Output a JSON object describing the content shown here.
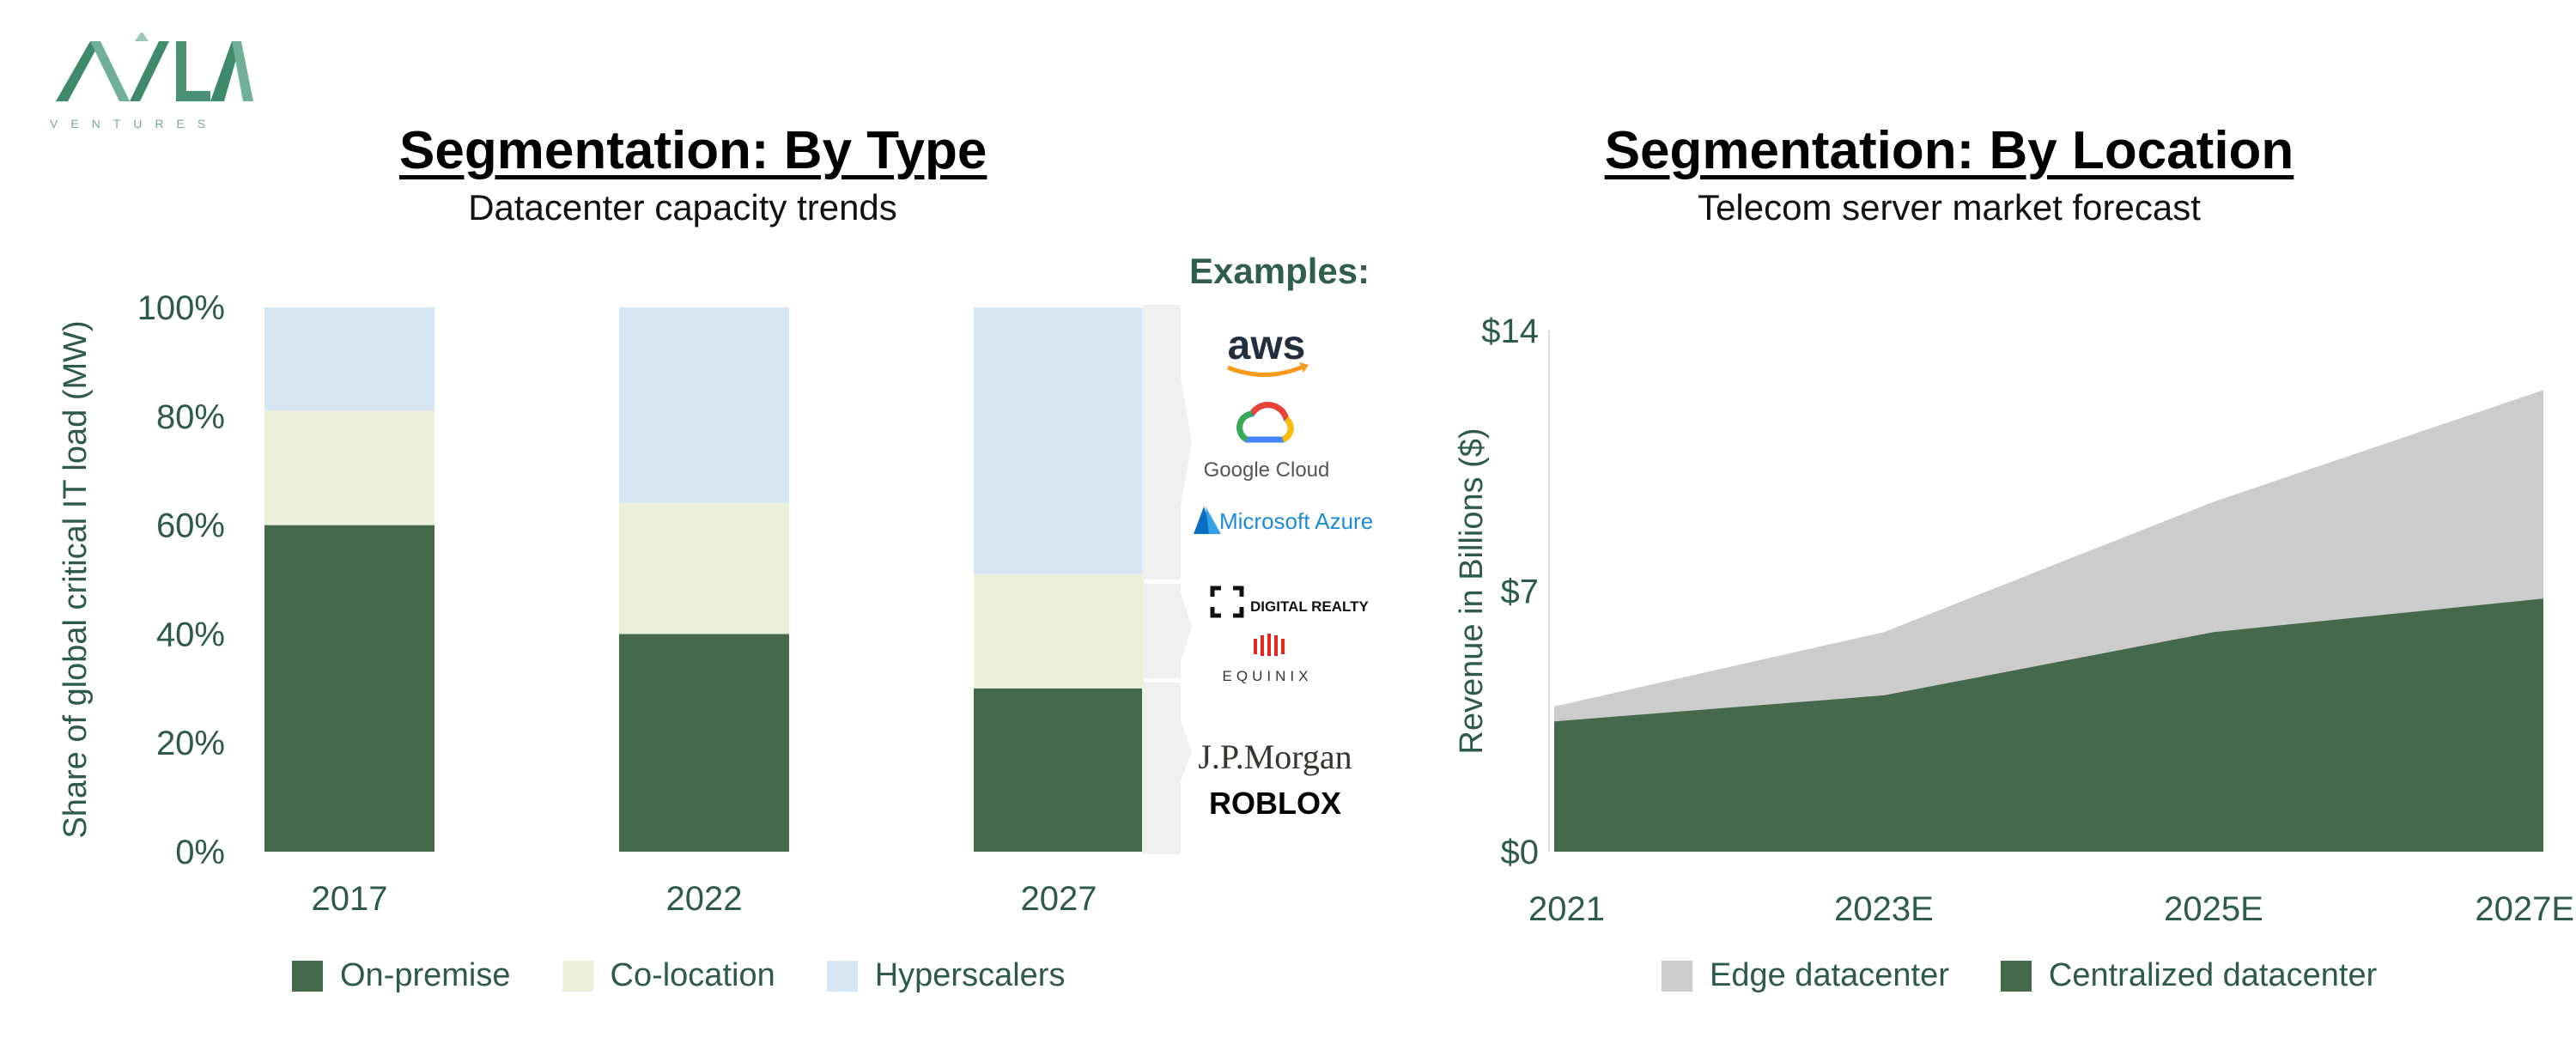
{
  "logo": {
    "text": "VENTURES",
    "brand": "AVILA",
    "color": "#4a8f72"
  },
  "left": {
    "title": "Segmentation: By Type",
    "subtitle": "Datacenter capacity trends",
    "examples_title": "Examples:",
    "examples": {
      "hyperscalers": [
        "aws",
        "Google Cloud",
        "Microsoft Azure"
      ],
      "colocation": [
        "DIGITAL REALTY",
        "EQUINIX"
      ],
      "onpremise": [
        "J.P.Morgan",
        "ROBLOX"
      ]
    }
  },
  "right": {
    "title": "Segmentation: By Location",
    "subtitle": "Telecom server market forecast"
  },
  "colors": {
    "onpremise": "#446a4b",
    "colocation": "#ebf0d8",
    "hyperscalers": "#d6e6f4",
    "edge": "#cccccc",
    "centralized": "#446a4b",
    "axis_text": "#2e5a48"
  },
  "chart_data": [
    {
      "type": "bar",
      "stacked": true,
      "categories": [
        "2017",
        "2022",
        "2027"
      ],
      "series": [
        {
          "name": "On-premise",
          "values": [
            60,
            40,
            30
          ]
        },
        {
          "name": "Co-location",
          "values": [
            21,
            24,
            21
          ]
        },
        {
          "name": "Hyperscalers",
          "values": [
            19,
            36,
            49
          ]
        }
      ],
      "ylabel": "Share of global critical IT load (MW)",
      "yticks": [
        "0%",
        "20%",
        "40%",
        "60%",
        "80%",
        "100%"
      ],
      "ylim": [
        0,
        100
      ],
      "legend": "bottom"
    },
    {
      "type": "area",
      "stacked": true,
      "x": [
        "2021",
        "2023E",
        "2025E",
        "2027E"
      ],
      "series": [
        {
          "name": "Centralized datacenter",
          "values": [
            3.5,
            4.2,
            5.9,
            6.8
          ]
        },
        {
          "name": "Edge datacenter",
          "values": [
            0.4,
            1.7,
            3.5,
            5.6
          ]
        }
      ],
      "ylabel": "Revenue in Billions ($)",
      "yticks": [
        "$0",
        "$7",
        "$14"
      ],
      "ylim": [
        0,
        14
      ],
      "legend": "bottom"
    }
  ]
}
